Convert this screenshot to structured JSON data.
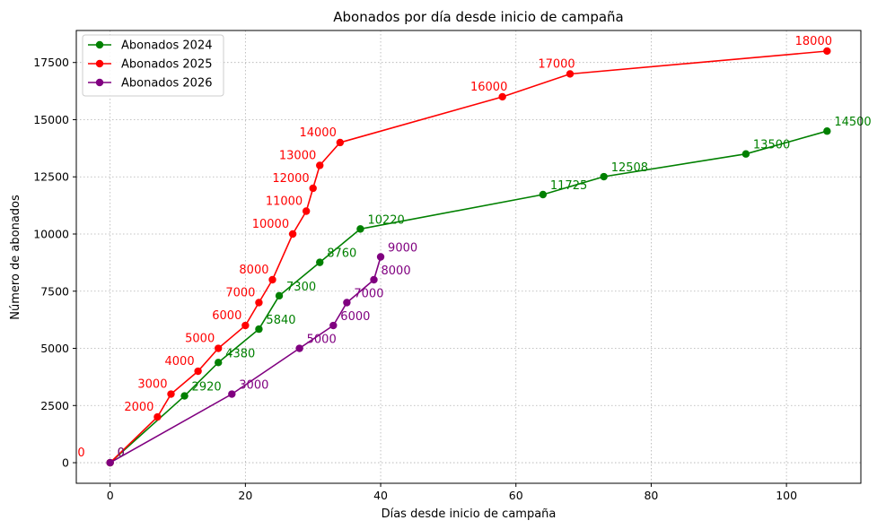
{
  "chart_data": {
    "type": "line",
    "title": "Abonados por día desde inicio de campaña",
    "xlabel": "Días desde inicio de campaña",
    "ylabel": "Número de abonados",
    "xlim": [
      -5,
      111
    ],
    "ylim": [
      -900,
      18900
    ],
    "xticks": [
      0,
      20,
      40,
      60,
      80,
      100
    ],
    "yticks": [
      0,
      2500,
      5000,
      7500,
      10000,
      12500,
      15000,
      17500
    ],
    "grid": true,
    "legend_position": "top-left",
    "series": [
      {
        "name": "Abonados 2024",
        "color": "#008000",
        "x": [
          0,
          11,
          16,
          22,
          25,
          31,
          37,
          64,
          73,
          94,
          106
        ],
        "y": [
          0,
          2920,
          4380,
          5840,
          7300,
          8760,
          10220,
          11725,
          12508,
          13500,
          14500
        ]
      },
      {
        "name": "Abonados 2025",
        "color": "#ff0000",
        "x": [
          0,
          7,
          9,
          13,
          16,
          20,
          22,
          24,
          27,
          29,
          30,
          31,
          34,
          58,
          68,
          106
        ],
        "y": [
          0,
          2000,
          3000,
          4000,
          5000,
          6000,
          7000,
          8000,
          10000,
          11000,
          12000,
          13000,
          14000,
          16000,
          17000,
          18000
        ]
      },
      {
        "name": "Abonados 2026",
        "color": "#800080",
        "x": [
          0,
          18,
          28,
          33,
          35,
          39,
          40
        ],
        "y": [
          0,
          3000,
          5000,
          6000,
          7000,
          8000,
          9000
        ]
      }
    ]
  }
}
